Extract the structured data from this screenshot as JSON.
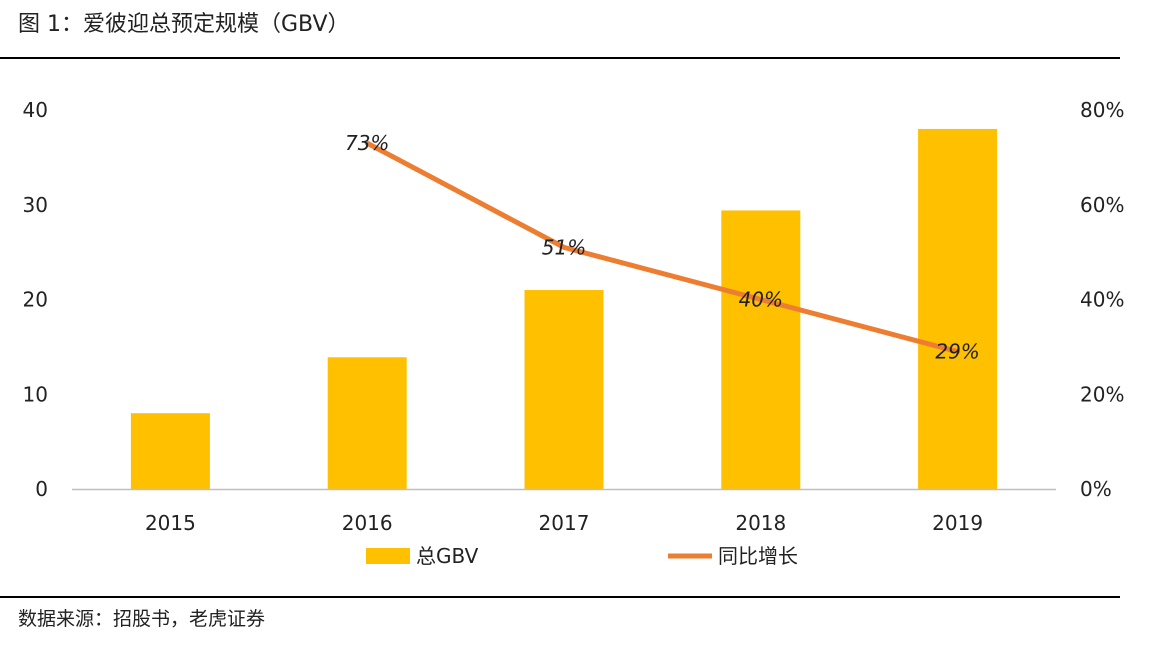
{
  "header": {
    "title": "图 1：爱彼迎总预定规模（GBV）"
  },
  "footer": {
    "source": "数据来源：招股书，老虎证券"
  },
  "colors": {
    "bar": "#FFC000",
    "line": "#ED7D31",
    "axis": "#BFBFBF",
    "rule": "#000000"
  },
  "chart_data": {
    "type": "bar",
    "title": "图 1：爱彼迎总预定规模（GBV）",
    "categories": [
      "2015",
      "2016",
      "2017",
      "2018",
      "2019"
    ],
    "series": [
      {
        "name": "总GBV",
        "type": "bar",
        "axis": "left",
        "values": [
          8.0,
          13.9,
          21.0,
          29.4,
          38.0
        ]
      },
      {
        "name": "同比增长",
        "type": "line",
        "axis": "right",
        "values": [
          null,
          73,
          51,
          40,
          29
        ],
        "labels": [
          "",
          "73%",
          "51%",
          "40%",
          "29%"
        ]
      }
    ],
    "y_left": {
      "min": 0,
      "max": 40,
      "ticks": [
        "0",
        "10",
        "20",
        "30",
        "40"
      ]
    },
    "y_right": {
      "min": 0,
      "max": 80,
      "ticks": [
        "0%",
        "20%",
        "40%",
        "60%",
        "80%"
      ]
    },
    "grid": false,
    "legend": "bottom"
  }
}
